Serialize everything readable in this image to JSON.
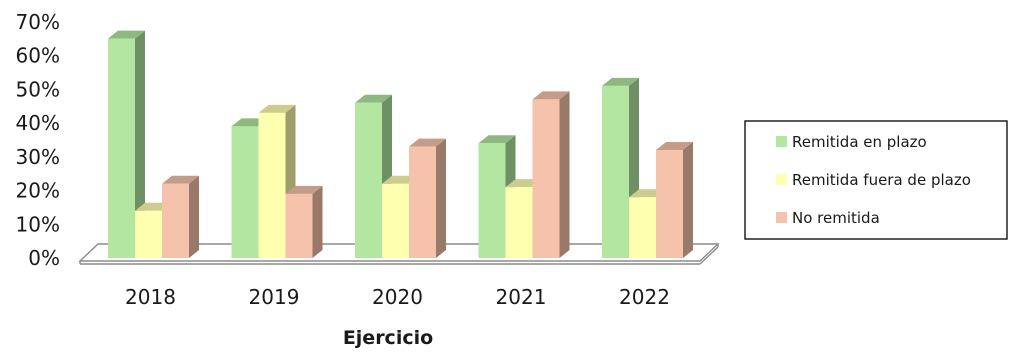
{
  "chart_data": {
    "type": "bar",
    "categories": [
      "2018",
      "2019",
      "2020",
      "2021",
      "2022"
    ],
    "series": [
      {
        "name": "Remitida en plazo",
        "values": [
          65,
          39,
          46,
          34,
          51
        ]
      },
      {
        "name": "Remitida fuera de plazo",
        "values": [
          14,
          43,
          22,
          21,
          18
        ]
      },
      {
        "name": "No remitida",
        "values": [
          22,
          19,
          33,
          47,
          32
        ]
      }
    ],
    "colors": {
      "Remitida en plazo": "#b3e6a1",
      "Remitida fuera de plazo": "#ffffb0",
      "No remitida": "#f5c3ab"
    },
    "xlabel": "Ejercicio",
    "ylim": [
      0,
      70
    ],
    "yticks": [
      "0%",
      "10%",
      "20%",
      "30%",
      "40%",
      "50%",
      "60%",
      "70%"
    ],
    "grid": false,
    "legend_position": "right",
    "style": "3d-clustered-columns"
  }
}
